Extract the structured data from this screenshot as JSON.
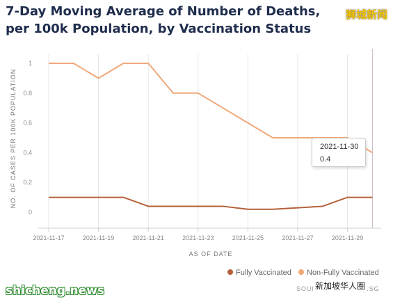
{
  "title": "7-Day Moving Average of Number of Deaths, per 100k Population, by Vaccination Status",
  "watermarks": {
    "top_right": "狮城新闻",
    "bottom_left": "shicheng.news",
    "bottom_right": "新加坡华人圈"
  },
  "source": "SOURCE: MOH.GOV.SG",
  "tooltip": {
    "date": "2021-11-30",
    "value": "0.4"
  },
  "colors": {
    "fully": "#b5613a",
    "non_fully": "#f0a878",
    "grid": "#e6e6e6",
    "cursor": "#c8b8c8"
  },
  "chart_data": {
    "type": "line",
    "xlabel": "AS OF DATE",
    "ylabel": "NO. OF CASES PER 100K POPULATION",
    "ylim": [
      0,
      1
    ],
    "yticks": [
      "0",
      "0.2",
      "0.4",
      "0.6",
      "0.8",
      "1"
    ],
    "x": [
      "2021-11-17",
      "2021-11-18",
      "2021-11-19",
      "2021-11-20",
      "2021-11-21",
      "2021-11-22",
      "2021-11-23",
      "2021-11-24",
      "2021-11-25",
      "2021-11-26",
      "2021-11-27",
      "2021-11-28",
      "2021-11-29",
      "2021-11-30"
    ],
    "xticks": [
      "2021-11-17",
      "2021-11-19",
      "2021-11-21",
      "2021-11-23",
      "2021-11-25",
      "2021-11-27",
      "2021-11-29"
    ],
    "series": [
      {
        "name": "Fully Vaccinated",
        "values": [
          0.1,
          0.1,
          0.1,
          0.1,
          0.04,
          0.04,
          0.04,
          0.04,
          0.02,
          0.02,
          0.03,
          0.04,
          0.1,
          0.1
        ]
      },
      {
        "name": "Non-Fully Vaccinated",
        "values": [
          1,
          1,
          0.9,
          1,
          1,
          0.8,
          0.8,
          0.7,
          0.6,
          0.5,
          0.5,
          0.5,
          0.5,
          0.4
        ]
      }
    ],
    "legend": "bottom-right",
    "grid": "vertical"
  }
}
